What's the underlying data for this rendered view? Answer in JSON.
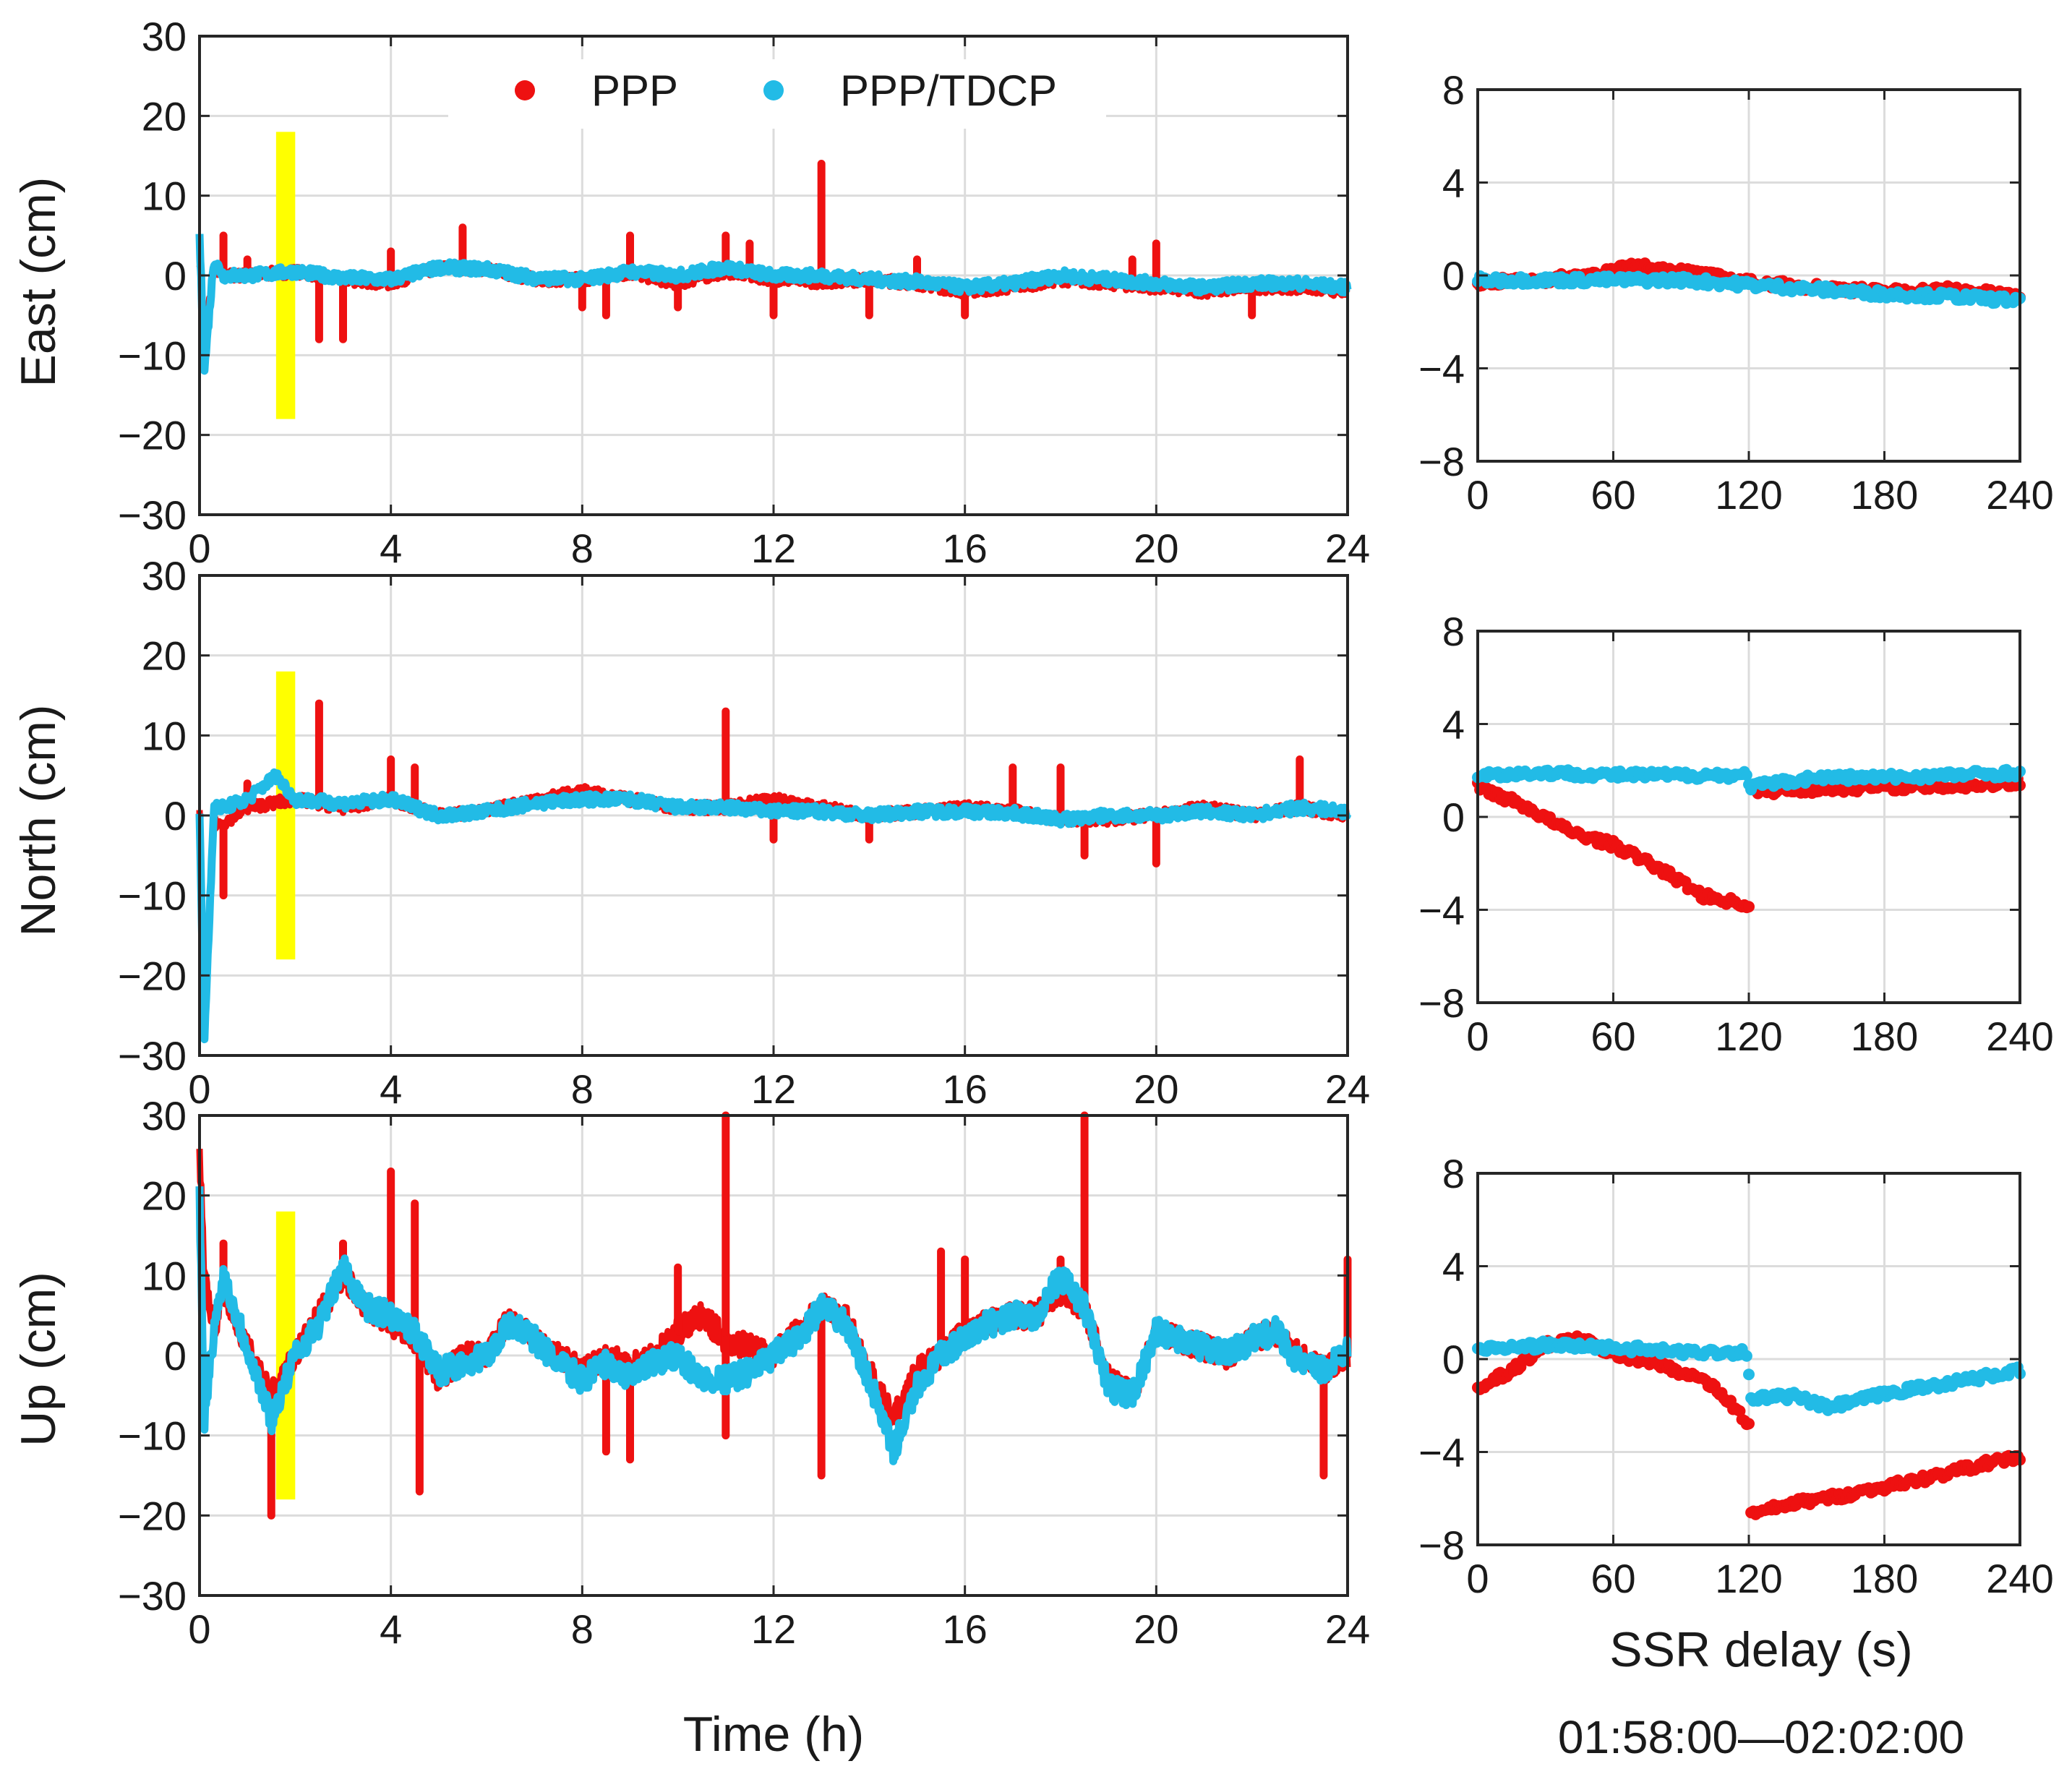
{
  "colors": {
    "ppp": "#ee1111",
    "ppp_tdcp": "#22bbe6",
    "highlight": "#ffff00",
    "grid": "#dcdcdc",
    "axis": "#262626"
  },
  "legend": {
    "series": [
      "PPP",
      "PPP/TDCP"
    ],
    "placement": "top-center"
  },
  "left_xlabel": "Time (h)",
  "right_xlabel": "SSR delay (s)",
  "right_caption": "01:58:00—02:02:00",
  "chart_data": [
    {
      "type": "line",
      "panel": "east-time",
      "ylabel": "East (cm)",
      "xlabel": "Time (h)",
      "xlim": [
        0,
        24
      ],
      "ylim": [
        -30,
        30
      ],
      "xticks": [
        0,
        4,
        8,
        12,
        16,
        20,
        24
      ],
      "yticks": [
        -30,
        -20,
        -10,
        0,
        10,
        20,
        30
      ],
      "highlight_band": {
        "x": [
          1.6,
          2.0
        ],
        "y": [
          -18,
          18
        ]
      },
      "series": [
        {
          "name": "PPP",
          "x": [
            0,
            0.1,
            0.3,
            0.5,
            1,
            2,
            3,
            4,
            5,
            6,
            7,
            8,
            9,
            10,
            11,
            12,
            13,
            14,
            15,
            16,
            17,
            18,
            19,
            20,
            21,
            22,
            23,
            24
          ],
          "y": [
            2,
            -8,
            1,
            0,
            0,
            0.5,
            -0.5,
            -1,
            1,
            0.8,
            -0.5,
            -0.5,
            0.3,
            -1,
            0.5,
            -0.5,
            -0.8,
            -0.5,
            -1,
            -2,
            -1.5,
            -0.5,
            -1,
            -1.5,
            -2,
            -1.5,
            -1.5,
            -2
          ],
          "spikes": [
            [
              0.5,
              5
            ],
            [
              1,
              2
            ],
            [
              2.5,
              -8
            ],
            [
              3,
              -8
            ],
            [
              4,
              3
            ],
            [
              5.5,
              6
            ],
            [
              8,
              -4
            ],
            [
              8.5,
              -5
            ],
            [
              9,
              5
            ],
            [
              10,
              -4
            ],
            [
              11,
              5
            ],
            [
              11.5,
              4
            ],
            [
              12,
              -5
            ],
            [
              13,
              14
            ],
            [
              14,
              -5
            ],
            [
              15,
              2
            ],
            [
              16,
              -5
            ],
            [
              19.5,
              2
            ],
            [
              20,
              4
            ],
            [
              22,
              -5
            ]
          ]
        },
        {
          "name": "PPP/TDCP",
          "x": [
            0,
            0.1,
            0.3,
            0.5,
            1,
            2,
            3,
            4,
            5,
            6,
            7,
            8,
            9,
            10,
            11,
            12,
            13,
            14,
            15,
            16,
            17,
            18,
            19,
            20,
            21,
            22,
            23,
            24
          ],
          "y": [
            5,
            -12,
            2,
            0,
            0,
            0.5,
            -0.3,
            -0.5,
            1,
            0.8,
            -0.3,
            -0.5,
            0.5,
            0,
            1,
            0,
            0,
            -0.5,
            -0.8,
            -1.5,
            -1,
            0,
            -0.5,
            -1,
            -1.5,
            -1,
            -1,
            -1.5
          ]
        }
      ]
    },
    {
      "type": "scatter",
      "panel": "east-delay",
      "xlabel": "",
      "ylabel": "",
      "xlim": [
        0,
        240
      ],
      "ylim": [
        -8,
        8
      ],
      "xticks": [
        0,
        60,
        120,
        180,
        240
      ],
      "yticks": [
        -8,
        -4,
        0,
        4,
        8
      ],
      "series": [
        {
          "name": "PPP",
          "x": [
            0,
            30,
            60,
            70,
            90,
            120,
            150,
            180,
            210,
            240
          ],
          "y": [
            -0.3,
            -0.2,
            0.2,
            0.4,
            0.2,
            -0.3,
            -0.5,
            -0.7,
            -0.6,
            -0.9
          ]
        },
        {
          "name": "PPP/TDCP",
          "x": [
            0,
            30,
            60,
            90,
            120,
            150,
            180,
            210,
            240
          ],
          "y": [
            -0.2,
            -0.2,
            -0.2,
            -0.2,
            -0.4,
            -0.6,
            -0.8,
            -0.9,
            -1.1
          ]
        }
      ]
    },
    {
      "type": "line",
      "panel": "north-time",
      "ylabel": "North (cm)",
      "xlabel": "Time (h)",
      "xlim": [
        0,
        24
      ],
      "ylim": [
        -30,
        30
      ],
      "xticks": [
        0,
        4,
        8,
        12,
        16,
        20,
        24
      ],
      "yticks": [
        -30,
        -20,
        -10,
        0,
        10,
        20,
        30
      ],
      "highlight_band": {
        "x": [
          1.6,
          2.0
        ],
        "y": [
          -18,
          18
        ]
      },
      "series": [
        {
          "name": "PPP",
          "x": [
            0,
            0.1,
            0.3,
            0.5,
            1,
            2,
            3,
            4,
            5,
            6,
            7,
            8,
            9,
            10,
            11,
            12,
            13,
            14,
            15,
            16,
            17,
            18,
            19,
            20,
            21,
            22,
            23,
            24
          ],
          "y": [
            0,
            -25,
            -1,
            -1,
            1,
            2,
            1,
            2,
            0,
            0.5,
            2,
            3,
            2,
            1,
            1,
            2,
            1,
            0,
            0.5,
            1,
            0.5,
            -0.5,
            -0.5,
            0,
            1,
            0,
            1,
            0
          ],
          "spikes": [
            [
              0.5,
              -10
            ],
            [
              1,
              4
            ],
            [
              2.5,
              14
            ],
            [
              4,
              7
            ],
            [
              4.5,
              6
            ],
            [
              11,
              13
            ],
            [
              12,
              -3
            ],
            [
              14,
              -3
            ],
            [
              17,
              6
            ],
            [
              18,
              6
            ],
            [
              18.5,
              -5
            ],
            [
              20,
              -6
            ],
            [
              23,
              7
            ]
          ]
        },
        {
          "name": "PPP/TDCP",
          "x": [
            0,
            0.1,
            0.3,
            0.5,
            1,
            1.6,
            2,
            3,
            4,
            5,
            6,
            7,
            8,
            9,
            10,
            11,
            12,
            13,
            14,
            15,
            16,
            17,
            18,
            19,
            20,
            21,
            22,
            23,
            24
          ],
          "y": [
            0,
            -28,
            1,
            1,
            2,
            5,
            2,
            1.5,
            2,
            0,
            0.5,
            1.5,
            2,
            2,
            1,
            1,
            0.5,
            0.5,
            0,
            0.5,
            0.5,
            0.3,
            -0.5,
            0,
            0,
            0.5,
            0,
            1,
            0.5
          ]
        }
      ]
    },
    {
      "type": "scatter",
      "panel": "north-delay",
      "xlabel": "",
      "ylabel": "",
      "xlim": [
        0,
        240
      ],
      "ylim": [
        -8,
        8
      ],
      "xticks": [
        0,
        60,
        120,
        180,
        240
      ],
      "yticks": [
        -8,
        -4,
        0,
        4,
        8
      ],
      "series": [
        {
          "name": "PPP",
          "x": [
            0,
            20,
            40,
            60,
            80,
            100,
            120,
            121,
            150,
            180,
            210,
            240
          ],
          "y": [
            1.3,
            0.5,
            -0.6,
            -1.2,
            -2.2,
            -3.4,
            -3.8,
            1.1,
            1.2,
            1.3,
            1.3,
            1.5
          ]
        },
        {
          "name": "PPP/TDCP",
          "x": [
            0,
            30,
            60,
            90,
            119,
            121,
            150,
            180,
            210,
            240
          ],
          "y": [
            1.8,
            1.9,
            1.8,
            1.8,
            1.8,
            1.3,
            1.7,
            1.7,
            1.8,
            1.9
          ]
        }
      ]
    },
    {
      "type": "line",
      "panel": "up-time",
      "ylabel": "Up (cm)",
      "xlabel": "Time (h)",
      "xlim": [
        0,
        24
      ],
      "ylim": [
        -30,
        30
      ],
      "xticks": [
        0,
        4,
        8,
        12,
        16,
        20,
        24
      ],
      "yticks": [
        -30,
        -20,
        -10,
        0,
        10,
        20,
        30
      ],
      "highlight_band": {
        "x": [
          1.6,
          2.0
        ],
        "y": [
          -18,
          18
        ]
      },
      "series": [
        {
          "name": "PPP",
          "x": [
            0,
            0.1,
            0.3,
            0.5,
            1,
            1.5,
            2,
            2.5,
            3,
            3.5,
            4,
            4.5,
            5,
            5.5,
            6,
            6.5,
            7,
            7.5,
            8,
            8.5,
            9,
            9.5,
            10,
            10.5,
            11,
            11.5,
            12,
            12.5,
            13,
            13.5,
            14,
            14.5,
            15,
            15.5,
            16,
            16.5,
            17,
            17.5,
            18,
            18.5,
            19,
            19.5,
            20,
            20.5,
            21,
            21.5,
            22,
            22.5,
            23,
            23.5,
            24
          ],
          "y": [
            25,
            10,
            3,
            8,
            1,
            -5,
            0,
            5,
            10,
            6,
            4,
            2,
            -3,
            0,
            0,
            5,
            2,
            0,
            -2,
            0,
            -1,
            0,
            3,
            5,
            2,
            1,
            0,
            3,
            6,
            5,
            -2,
            -8,
            -2,
            0,
            3,
            4,
            5,
            5,
            8,
            6,
            -3,
            -5,
            3,
            2,
            1,
            0,
            2,
            3,
            0,
            -2,
            0
          ],
          "spikes": [
            [
              0.5,
              14
            ],
            [
              1.5,
              -20
            ],
            [
              3,
              14
            ],
            [
              4,
              23
            ],
            [
              4.5,
              19
            ],
            [
              4.6,
              -17
            ],
            [
              8.5,
              -12
            ],
            [
              9,
              -13
            ],
            [
              10,
              11
            ],
            [
              11,
              30
            ],
            [
              11,
              -10
            ],
            [
              13,
              -15
            ],
            [
              15.5,
              13
            ],
            [
              16,
              12
            ],
            [
              18,
              12
            ],
            [
              18.5,
              30
            ],
            [
              23.5,
              -15
            ],
            [
              24,
              12
            ]
          ]
        },
        {
          "name": "PPP/TDCP",
          "x": [
            0,
            0.1,
            0.3,
            0.5,
            1,
            1.5,
            2,
            2.5,
            3,
            3.5,
            4,
            4.5,
            5,
            5.5,
            6,
            6.5,
            7,
            7.5,
            8,
            8.5,
            9,
            9.5,
            10,
            10.5,
            11,
            11.5,
            12,
            12.5,
            13,
            13.5,
            14,
            14.5,
            15,
            15.5,
            16,
            16.5,
            17,
            17.5,
            18,
            18.5,
            19,
            19.5,
            20,
            20.5,
            21,
            21.5,
            22,
            22.5,
            23,
            23.5,
            24
          ],
          "y": [
            20,
            -8,
            3,
            10,
            1,
            -8,
            0,
            4,
            11,
            6,
            5,
            3,
            -2,
            -1,
            0,
            4,
            2,
            -1,
            -3,
            -1,
            -3,
            -1,
            0,
            -3,
            -3,
            -2,
            0,
            2,
            6,
            4,
            -3,
            -12,
            -4,
            0,
            2,
            4,
            5,
            5,
            10,
            6,
            -4,
            -5,
            3,
            2,
            1,
            0,
            2,
            3,
            -1,
            -2,
            1
          ]
        }
      ]
    },
    {
      "type": "scatter",
      "panel": "up-delay",
      "xlabel": "SSR delay (s)",
      "ylabel": "",
      "xlim": [
        0,
        240
      ],
      "ylim": [
        -8,
        8
      ],
      "xticks": [
        0,
        60,
        120,
        180,
        240
      ],
      "yticks": [
        -8,
        -4,
        0,
        4,
        8
      ],
      "series": [
        {
          "name": "PPP",
          "x": [
            0,
            15,
            30,
            45,
            60,
            80,
            100,
            110,
            120,
            121,
            140,
            160,
            180,
            200,
            220,
            240
          ],
          "y": [
            -1.2,
            -0.5,
            0.6,
            0.9,
            0.2,
            -0.2,
            -0.9,
            -1.7,
            -2.8,
            -6.7,
            -6.2,
            -5.9,
            -5.5,
            -5.1,
            -4.6,
            -4.2
          ]
        },
        {
          "name": "PPP/TDCP",
          "x": [
            0,
            30,
            60,
            90,
            119,
            121,
            140,
            155,
            180,
            210,
            240
          ],
          "y": [
            0.4,
            0.6,
            0.5,
            0.3,
            0.3,
            -1.7,
            -1.6,
            -2.1,
            -1.5,
            -1.0,
            -0.5
          ]
        }
      ]
    }
  ]
}
